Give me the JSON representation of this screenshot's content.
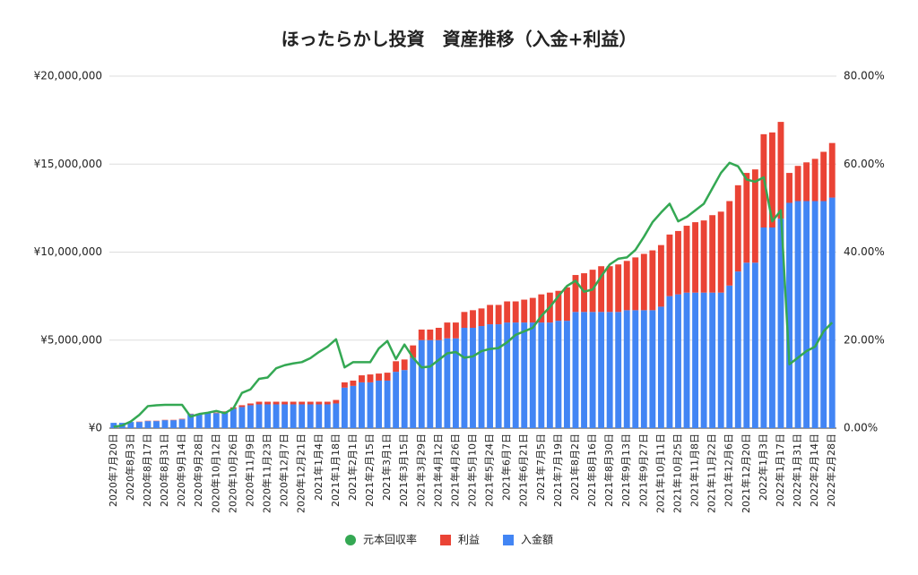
{
  "chart_data": {
    "type": "bar",
    "title": "ほったらかし投資　資産推移（入金+利益）",
    "categories": [
      "2020年7月20日",
      null,
      "2020年8月3日",
      null,
      "2020年8月17日",
      null,
      "2020年8月31日",
      null,
      "2020年9月14日",
      null,
      "2020年9月28日",
      null,
      "2020年10月12日",
      null,
      "2020年10月26日",
      null,
      "2020年11月9日",
      null,
      "2020年11月23日",
      null,
      "2020年12月7日",
      null,
      "2020年12月21日",
      null,
      "2021年1月4日",
      null,
      "2021年1月18日",
      null,
      "2021年2月1日",
      null,
      "2021年2月15日",
      null,
      "2021年3月1日",
      null,
      "2021年3月15日",
      null,
      "2021年3月29日",
      null,
      "2021年4月12日",
      null,
      "2021年4月26日",
      null,
      "2021年5月10日",
      null,
      "2021年5月24日",
      null,
      "2021年6月7日",
      null,
      "2021年6月21日",
      null,
      "2021年7月5日",
      null,
      "2021年7月19日",
      null,
      "2021年8月2日",
      null,
      "2021年8月16日",
      null,
      "2021年8月30日",
      null,
      "2021年9月13日",
      null,
      "2021年9月27日",
      null,
      "2021年10月11日",
      null,
      "2021年10月25日",
      null,
      "2021年11月8日",
      null,
      "2021年11月22日",
      null,
      "2021年12月6日",
      null,
      "2021年12月20日",
      null,
      "2022年1月3日",
      null,
      "2022年1月17日",
      null,
      "2022年1月31日",
      null,
      "2022年2月14日",
      null,
      "2022年2月28日"
    ],
    "series": [
      {
        "name": "入金額",
        "color": "#4285f4",
        "values": [
          300000,
          300000,
          350000,
          350000,
          400000,
          400000,
          450000,
          450000,
          500000,
          800000,
          800000,
          850000,
          850000,
          900000,
          1100000,
          1200000,
          1300000,
          1350000,
          1350000,
          1350000,
          1350000,
          1350000,
          1350000,
          1350000,
          1350000,
          1350000,
          1400000,
          2300000,
          2400000,
          2600000,
          2600000,
          2700000,
          2700000,
          3200000,
          3300000,
          4000000,
          5000000,
          5000000,
          5000000,
          5100000,
          5100000,
          5700000,
          5700000,
          5800000,
          5900000,
          5900000,
          6000000,
          6000000,
          6000000,
          6000000,
          6000000,
          6000000,
          6100000,
          6100000,
          6600000,
          6600000,
          6600000,
          6600000,
          6600000,
          6600000,
          6700000,
          6700000,
          6700000,
          6700000,
          6900000,
          7500000,
          7600000,
          7700000,
          7700000,
          7700000,
          7700000,
          7700000,
          8100000,
          8900000,
          9400000,
          9400000,
          11400000,
          11400000,
          11900000,
          12800000,
          12900000,
          12900000,
          12900000,
          12900000,
          13100000
        ]
      },
      {
        "name": "利益",
        "color": "#ea4335",
        "values": [
          0,
          0,
          0,
          20000,
          20000,
          20000,
          20000,
          20000,
          30000,
          20000,
          20000,
          30000,
          30000,
          50000,
          80000,
          100000,
          100000,
          150000,
          150000,
          150000,
          150000,
          150000,
          150000,
          150000,
          150000,
          150000,
          200000,
          300000,
          300000,
          400000,
          450000,
          400000,
          450000,
          600000,
          600000,
          700000,
          600000,
          600000,
          700000,
          900000,
          900000,
          900000,
          1000000,
          1000000,
          1100000,
          1100000,
          1200000,
          1200000,
          1300000,
          1400000,
          1600000,
          1700000,
          1700000,
          1900000,
          2100000,
          2200000,
          2400000,
          2600000,
          2600000,
          2700000,
          2800000,
          3000000,
          3200000,
          3400000,
          3500000,
          3500000,
          3600000,
          3800000,
          4000000,
          4100000,
          4400000,
          4600000,
          4800000,
          4900000,
          5100000,
          5300000,
          5300000,
          5400000,
          5500000,
          1700000,
          2000000,
          2200000,
          2400000,
          2800000,
          3100000
        ]
      },
      {
        "name": "元本回収率",
        "color": "#34a853",
        "type": "line",
        "axis": "y2",
        "values": [
          0.3,
          0.6,
          1.5,
          3.0,
          5.0,
          5.2,
          5.3,
          5.3,
          5.3,
          2.6,
          3.2,
          3.5,
          3.9,
          3.4,
          4.5,
          8.0,
          8.8,
          11.2,
          11.5,
          13.6,
          14.3,
          14.7,
          15.0,
          15.9,
          17.3,
          18.5,
          20.2,
          13.8,
          15.0,
          15.0,
          15.0,
          18.1,
          19.8,
          15.7,
          19.0,
          16.0,
          13.8,
          14.0,
          15.5,
          17.0,
          17.3,
          16.0,
          16.3,
          17.5,
          18.0,
          18.2,
          19.5,
          21.2,
          22.0,
          22.8,
          25.5,
          27.5,
          30.0,
          32.3,
          33.5,
          31.0,
          31.5,
          34.5,
          37.2,
          38.5,
          38.8,
          40.5,
          43.5,
          46.8,
          49.0,
          51.0,
          47.0,
          48.0,
          49.5,
          51.0,
          54.5,
          58.0,
          60.3,
          59.5,
          56.5,
          56.0,
          57.0,
          47.0,
          49.5,
          14.5,
          16.0,
          17.5,
          18.5,
          22.0,
          24.0
        ]
      }
    ],
    "stacked": true,
    "ylim": [
      0,
      20000000
    ],
    "yticks": [
      {
        "value": 0,
        "label": "¥0"
      },
      {
        "value": 5000000,
        "label": "¥5,000,000"
      },
      {
        "value": 10000000,
        "label": "¥10,000,000"
      },
      {
        "value": 15000000,
        "label": "¥15,000,000"
      },
      {
        "value": 20000000,
        "label": "¥20,000,000"
      }
    ],
    "y2lim": [
      0,
      80
    ],
    "y2ticks": [
      {
        "value": 0,
        "label": "0.00%"
      },
      {
        "value": 20,
        "label": "20.00%"
      },
      {
        "value": 40,
        "label": "40.00%"
      },
      {
        "value": 60,
        "label": "60.00%"
      },
      {
        "value": 80,
        "label": "80.00%"
      }
    ],
    "grid": true,
    "legend": "bottom"
  }
}
